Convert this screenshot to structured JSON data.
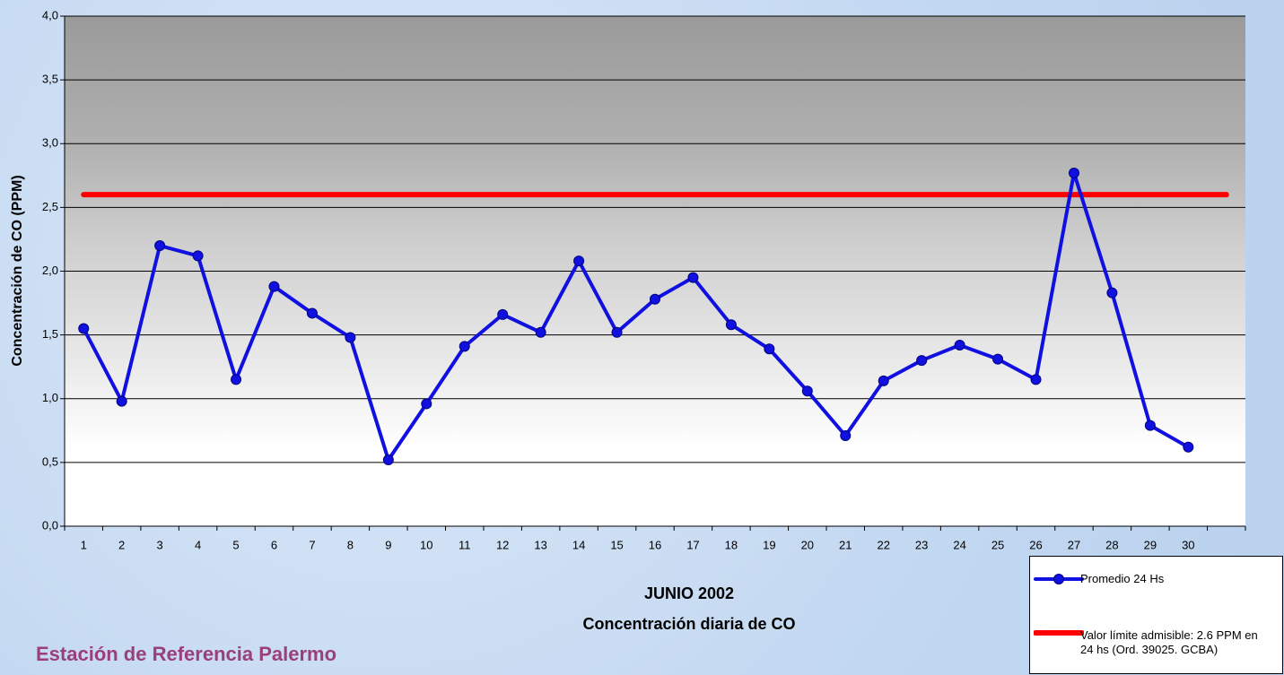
{
  "chart_data": {
    "type": "line",
    "title": "Concentración diaria de CO",
    "x_label": "JUNIO 2002",
    "y_label": "Concentración de CO (PPM)",
    "annotation": "Estación de Referencia Palermo",
    "categories": [
      "1",
      "2",
      "3",
      "4",
      "5",
      "6",
      "7",
      "8",
      "9",
      "10",
      "11",
      "12",
      "13",
      "14",
      "15",
      "16",
      "17",
      "18",
      "19",
      "20",
      "21",
      "22",
      "23",
      "24",
      "25",
      "26",
      "27",
      "28",
      "29",
      "30",
      null
    ],
    "series": [
      {
        "name": "Promedio 24 Hs",
        "color": "#1010e0",
        "markers": true,
        "values": [
          1.55,
          0.98,
          2.2,
          2.12,
          1.15,
          1.88,
          1.67,
          1.48,
          0.52,
          0.96,
          1.41,
          1.66,
          1.52,
          2.08,
          1.52,
          1.78,
          1.95,
          1.58,
          1.39,
          1.06,
          0.71,
          1.14,
          1.3,
          1.42,
          1.31,
          1.15,
          2.77,
          1.83,
          0.79,
          0.62,
          null
        ]
      },
      {
        "name": "Valor límite admisible: 2.6 PPM en 24 hs (Ord. 39025. GCBA)",
        "color": "#ff0000",
        "markers": false,
        "values": [
          2.6,
          2.6,
          2.6,
          2.6,
          2.6,
          2.6,
          2.6,
          2.6,
          2.6,
          2.6,
          2.6,
          2.6,
          2.6,
          2.6,
          2.6,
          2.6,
          2.6,
          2.6,
          2.6,
          2.6,
          2.6,
          2.6,
          2.6,
          2.6,
          2.6,
          2.6,
          2.6,
          2.6,
          2.6,
          2.6,
          2.6
        ]
      }
    ],
    "ylim": [
      0,
      4
    ],
    "yticks": [
      {
        "value": 0,
        "label": "0,0"
      },
      {
        "value": 0.5,
        "label": "0,5"
      },
      {
        "value": 1,
        "label": "1,0"
      },
      {
        "value": 1.5,
        "label": "1,5"
      },
      {
        "value": 2,
        "label": "2,0"
      },
      {
        "value": 2.5,
        "label": "2,5"
      },
      {
        "value": 3,
        "label": "3,0"
      },
      {
        "value": 3.5,
        "label": "3,5"
      },
      {
        "value": 4,
        "label": "4,0"
      }
    ],
    "grid": true
  }
}
